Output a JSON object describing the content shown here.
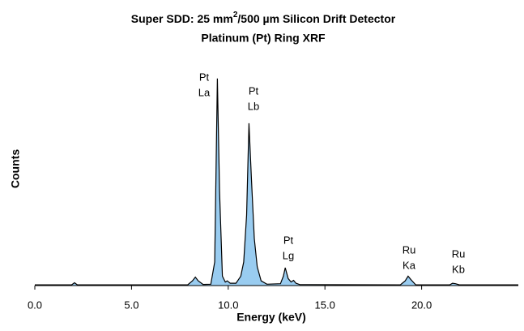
{
  "chart_data": {
    "type": "area",
    "title": [
      "Super SDD: 25 mm",
      "2",
      "/500 µm Silicon Drift Detector"
    ],
    "subtitle": "Platinum (Pt) Ring XRF",
    "x_label": "Energy (keV)",
    "y_label": "Counts",
    "x": [
      0.0,
      1.9,
      2.05,
      2.2,
      7.9,
      8.15,
      8.3,
      8.45,
      8.7,
      9.1,
      9.3,
      9.44,
      9.55,
      9.7,
      9.85,
      9.95,
      10.1,
      10.4,
      10.65,
      10.8,
      10.95,
      11.07,
      11.2,
      11.35,
      11.5,
      11.7,
      12.0,
      12.7,
      12.85,
      12.95,
      13.1,
      13.25,
      13.38,
      13.5,
      13.7,
      18.9,
      19.15,
      19.3,
      19.45,
      19.7,
      21.45,
      21.6,
      21.75,
      21.95,
      25.0
    ],
    "values": [
      0.3,
      0.3,
      1.2,
      0.3,
      0.3,
      2.0,
      3.6,
      2.0,
      0.5,
      0.6,
      10.0,
      88.0,
      40.0,
      4.0,
      1.5,
      2.0,
      1.0,
      1.0,
      4.0,
      10.0,
      30.0,
      69.0,
      45.0,
      20.0,
      8.0,
      2.0,
      0.6,
      0.8,
      4.0,
      7.6,
      3.0,
      1.5,
      2.2,
      1.0,
      0.4,
      0.3,
      2.0,
      4.0,
      2.5,
      0.3,
      0.3,
      1.0,
      0.8,
      0.3,
      0.3
    ],
    "color": "#99ccf0",
    "line_color": "#000000",
    "xlim": [
      0,
      25
    ],
    "ylim": [
      0,
      100
    ],
    "xticks": [
      {
        "value": 0,
        "label": "0.0"
      },
      {
        "value": 5,
        "label": "5.0"
      },
      {
        "value": 10,
        "label": "10.0"
      },
      {
        "value": 15,
        "label": "15.0"
      },
      {
        "value": 20,
        "label": "20.0"
      }
    ],
    "annotations": [
      {
        "lines": [
          "Pt",
          "La"
        ]
      },
      {
        "lines": [
          "Pt",
          "Lb"
        ]
      },
      {
        "lines": [
          "Pt",
          "Lg"
        ]
      },
      {
        "lines": [
          "Ru",
          "Ka"
        ]
      },
      {
        "lines": [
          "Ru",
          "Kb"
        ]
      }
    ]
  }
}
